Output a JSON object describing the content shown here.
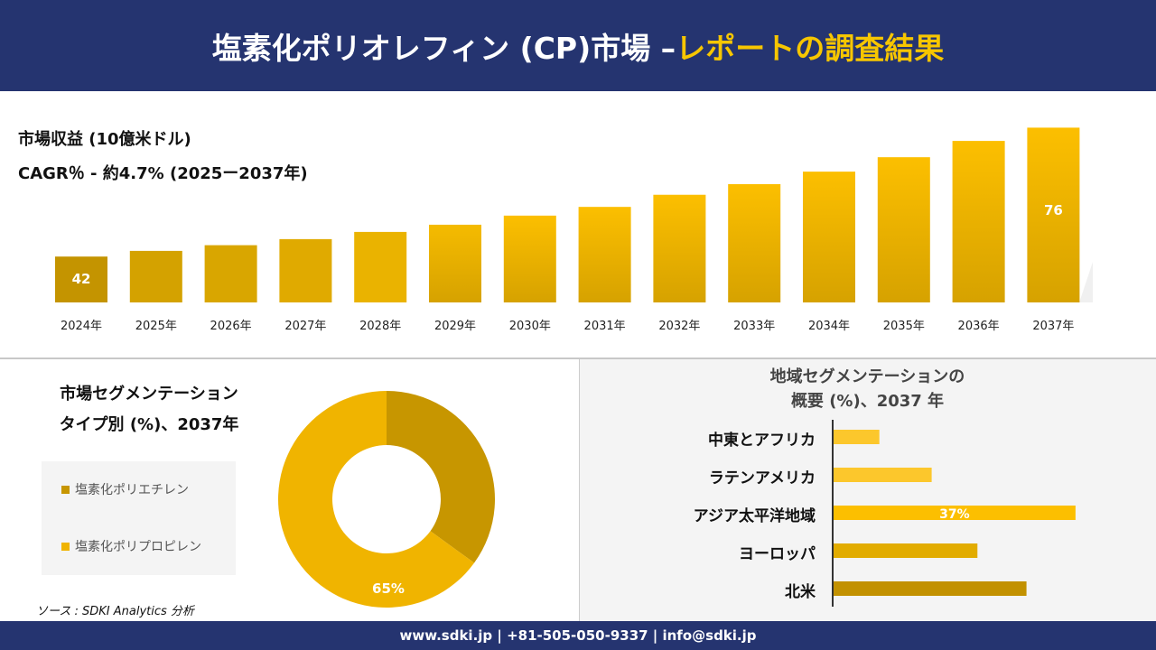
{
  "header": {
    "title_main": "塩素化ポリオレフィン (CP)市場 –",
    "title_highlight": "レポートの調査結果"
  },
  "revenue": {
    "label": "市場収益 (10億米ドル)",
    "cagr": "CAGR％ - 約4.7% (2025ー2037年)"
  },
  "chart_data": [
    {
      "type": "bar",
      "categories": [
        "2024年",
        "2025年",
        "2026年",
        "2027年",
        "2028年",
        "2029年",
        "2030年",
        "2031年",
        "2032年",
        "2033年",
        "2034年",
        "2035年",
        "2036年",
        "2037年"
      ],
      "values": [
        42,
        43.5,
        45,
        46.6,
        48.5,
        50.4,
        52.8,
        55.1,
        58.3,
        61.1,
        64.4,
        68.2,
        72.5,
        76
      ],
      "data_labels": {
        "0": "42",
        "13": "76"
      },
      "colors": [
        "#c49400",
        "#d4a200",
        "#d9a600",
        "#e0aa00",
        "#eab300",
        "#f5bb00",
        "#fcbf00",
        "#fcbf00",
        "#fcbf00",
        "#fcbf00",
        "#fcbf00",
        "#fcbf00",
        "#fcbf00",
        "#fcbf00"
      ]
    },
    {
      "type": "pie",
      "title": "市場セグメンテーション タイプ別 (%)、2037年",
      "title_line1": "市場セグメンテーション",
      "title_line2": "タイプ別 (%)、2037年",
      "slices": [
        {
          "name": "塩素化ポリエチレン",
          "value": 35,
          "color": "#c79600"
        },
        {
          "name": "塩素化ポリプロピレン",
          "value": 65,
          "color": "#f0b400",
          "label": "65%"
        }
      ]
    },
    {
      "type": "bar",
      "orientation": "horizontal",
      "title_line1": "地域セグメンテーションの",
      "title_line2": "概要 (%)、2037 年",
      "categories": [
        "中東とアフリカ",
        "ラテンアメリカ",
        "アジア太平洋地域",
        "ヨーロッパ",
        "北米"
      ],
      "values": [
        7,
        15,
        37,
        22,
        29.5
      ],
      "data_labels": {
        "2": "37%"
      },
      "colors": [
        "#fcc72c",
        "#fcc72c",
        "#fcbf00",
        "#e2ac00",
        "#c29100"
      ]
    }
  ],
  "source": "ソース : SDKI Analytics 分析",
  "footer": "www.sdki.jp | +81-505-050-9337 | info@sdki.jp"
}
